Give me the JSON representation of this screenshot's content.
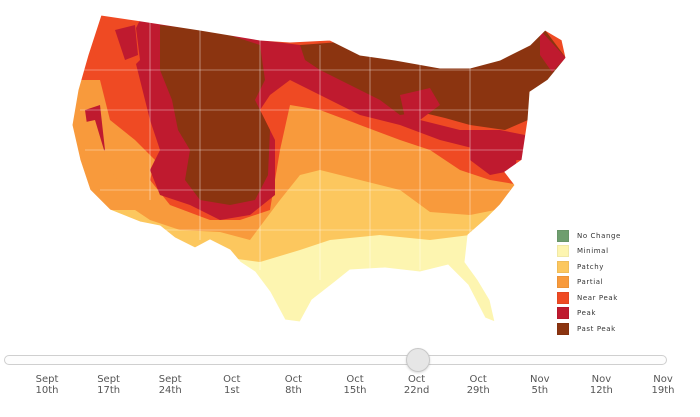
{
  "legend": {
    "items": [
      {
        "label": "No Change",
        "color": "#6e9e6e"
      },
      {
        "label": "Minimal",
        "color": "#fdf5b0"
      },
      {
        "label": "Patchy",
        "color": "#fcc75e"
      },
      {
        "label": "Partial",
        "color": "#f89a3c"
      },
      {
        "label": "Near Peak",
        "color": "#ef4a23"
      },
      {
        "label": "Peak",
        "color": "#bf1a2f"
      },
      {
        "label": "Past Peak",
        "color": "#8b3410"
      }
    ]
  },
  "timeline": {
    "ticks": [
      {
        "month": "Sept",
        "day": "10th"
      },
      {
        "month": "Sept",
        "day": "17th"
      },
      {
        "month": "Sept",
        "day": "24th"
      },
      {
        "month": "Oct",
        "day": "1st"
      },
      {
        "month": "Oct",
        "day": "8th"
      },
      {
        "month": "Oct",
        "day": "15th"
      },
      {
        "month": "Oct",
        "day": "22nd"
      },
      {
        "month": "Oct",
        "day": "29th"
      },
      {
        "month": "Nov",
        "day": "5th"
      },
      {
        "month": "Nov",
        "day": "12th"
      },
      {
        "month": "Nov",
        "day": "19th"
      }
    ],
    "selected_index": 6
  }
}
